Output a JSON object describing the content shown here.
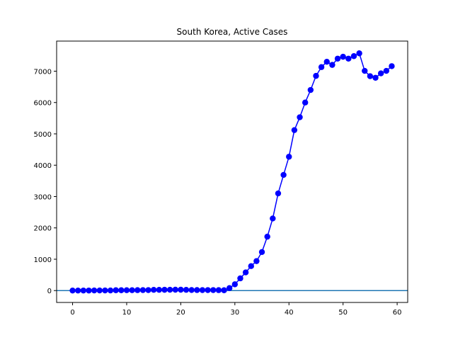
{
  "chart_data": {
    "type": "line",
    "title": "South Korea, Active Cases",
    "xlabel": "",
    "ylabel": "",
    "xlim": [
      -2.95,
      61.95
    ],
    "ylim": [
      -379,
      7960
    ],
    "x_ticks": [
      0,
      10,
      20,
      30,
      40,
      50,
      60
    ],
    "y_ticks": [
      0,
      1000,
      2000,
      3000,
      4000,
      5000,
      6000,
      7000
    ],
    "grid": false,
    "legend": "none",
    "series": [
      {
        "color": "#0000ff",
        "marker": "circle",
        "x": [
          0,
          1,
          2,
          3,
          4,
          5,
          6,
          7,
          8,
          9,
          10,
          11,
          12,
          13,
          14,
          15,
          16,
          17,
          18,
          19,
          20,
          21,
          22,
          23,
          24,
          25,
          26,
          27,
          28,
          29,
          30,
          31,
          32,
          33,
          34,
          35,
          36,
          37,
          38,
          39,
          40,
          41,
          42,
          43,
          44,
          45,
          46,
          47,
          48,
          49,
          50,
          51,
          52,
          53,
          54,
          55,
          56,
          57,
          58,
          59
        ],
        "y": [
          1,
          1,
          2,
          2,
          4,
          4,
          4,
          4,
          11,
          11,
          12,
          12,
          14,
          15,
          16,
          23,
          24,
          25,
          27,
          28,
          28,
          24,
          18,
          17,
          16,
          16,
          16,
          14,
          11,
          80,
          200,
          390,
          580,
          780,
          940,
          1230,
          1720,
          2300,
          3100,
          3690,
          4270,
          5120,
          5530,
          6000,
          6400,
          6850,
          7130,
          7300,
          7200,
          7400,
          7460,
          7400,
          7480,
          7570,
          7010,
          6840,
          6790,
          6930,
          7010,
          7160
        ]
      }
    ],
    "hline": {
      "y": 0,
      "color": "#1f77b4"
    }
  }
}
